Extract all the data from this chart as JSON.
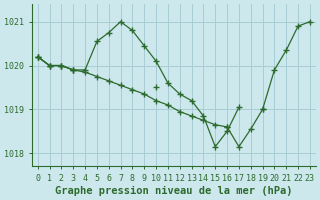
{
  "title": "Graphe pression niveau de la mer (hPa)",
  "background_color": "#cce8ed",
  "line_color": "#2d6a2d",
  "grid_color": "#a8cdd4",
  "x_values": [
    0,
    1,
    2,
    3,
    4,
    5,
    6,
    7,
    8,
    9,
    10,
    11,
    12,
    13,
    14,
    15,
    16,
    17,
    18,
    19,
    20,
    21,
    22,
    23
  ],
  "y_series1": [
    1020.2,
    1020.0,
    1020.0,
    1019.9,
    1019.9,
    1020.55,
    1020.75,
    1021.0,
    1020.8,
    1020.45,
    1020.1,
    1019.6,
    1019.35,
    1019.2,
    1018.85,
    1018.15,
    1018.5,
    1019.05,
    null,
    null,
    null,
    null,
    null,
    null
  ],
  "y_series2": [
    1020.2,
    1020.0,
    1020.0,
    1019.9,
    1019.85,
    1019.75,
    1019.65,
    1019.55,
    1019.45,
    1019.35,
    1019.2,
    1019.1,
    1018.95,
    1018.85,
    1018.75,
    1018.65,
    1018.6,
    1018.15,
    1018.55,
    1019.0,
    null,
    null,
    null,
    null
  ],
  "y_series3": [
    1020.2,
    1020.0,
    1020.0,
    1019.9,
    null,
    null,
    null,
    null,
    null,
    null,
    1019.5,
    null,
    null,
    null,
    null,
    null,
    1018.6,
    null,
    null,
    1019.0,
    1019.9,
    1020.35,
    1020.9,
    1021.0
  ],
  "ylim": [
    1017.7,
    1021.4
  ],
  "yticks": [
    1018,
    1019,
    1020,
    1021
  ],
  "xlim": [
    -0.5,
    23.5
  ],
  "xticks": [
    0,
    1,
    2,
    3,
    4,
    5,
    6,
    7,
    8,
    9,
    10,
    11,
    12,
    13,
    14,
    15,
    16,
    17,
    18,
    19,
    20,
    21,
    22,
    23
  ],
  "title_fontsize": 7.5,
  "tick_fontsize": 6.0
}
